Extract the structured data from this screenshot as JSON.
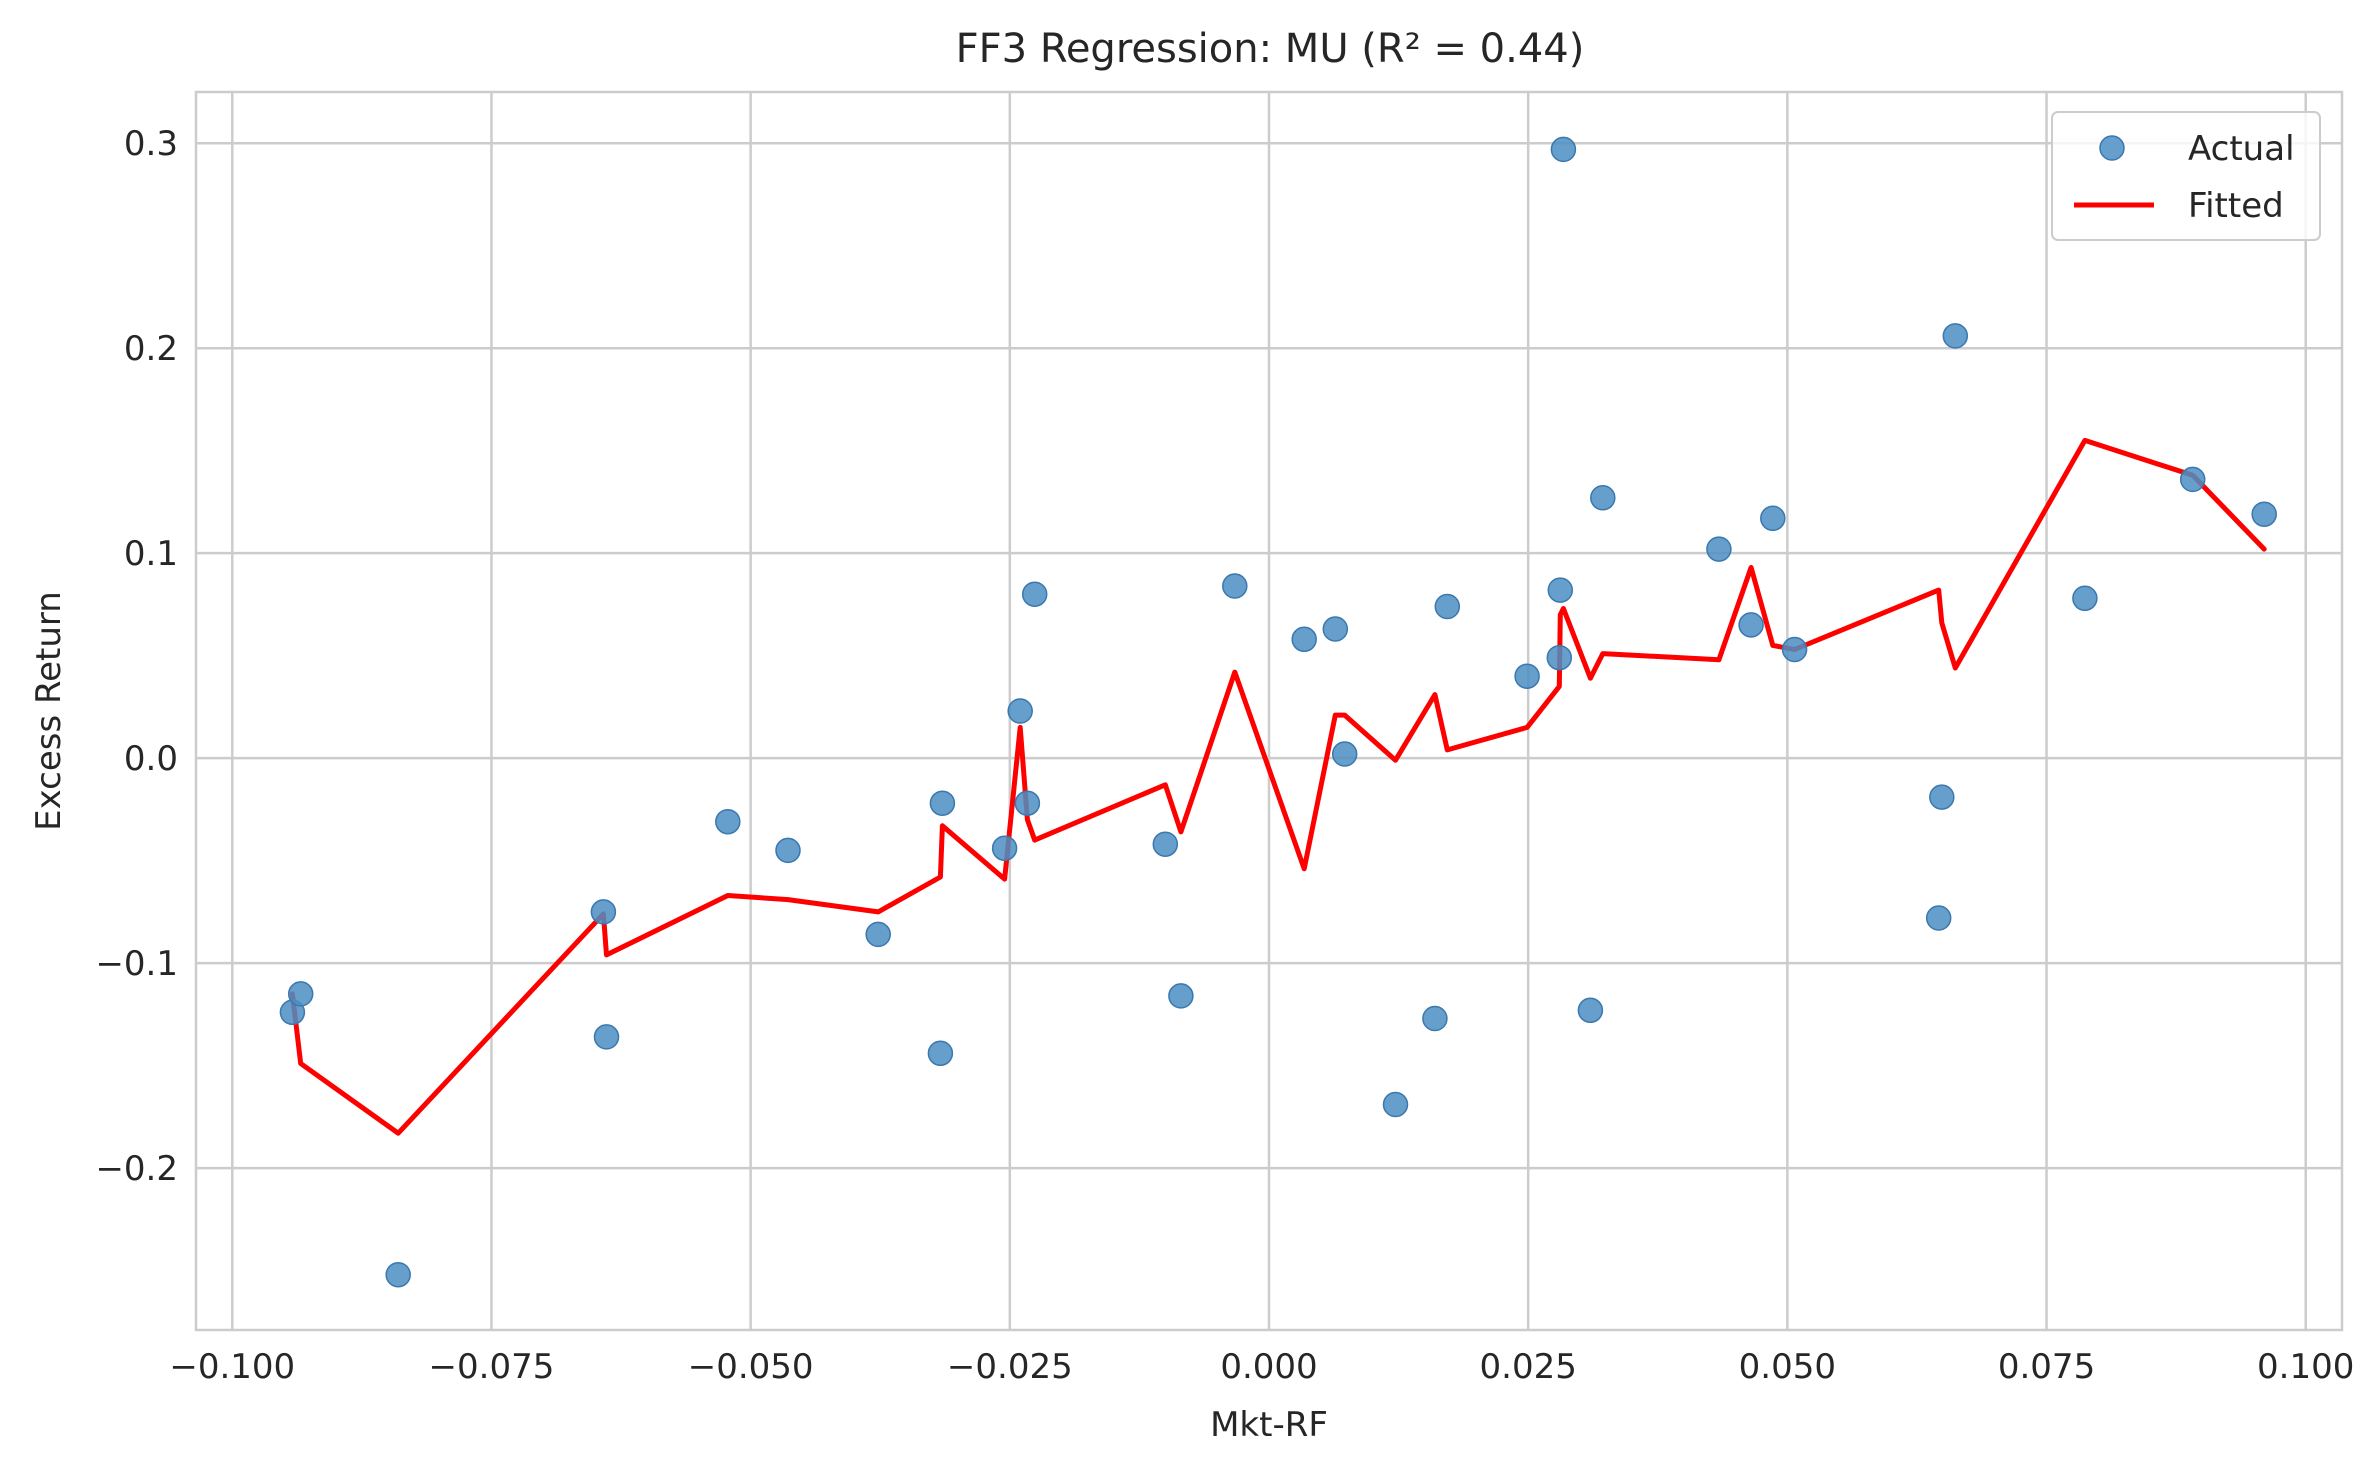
{
  "chart_data": {
    "type": "scatter",
    "title": "FF3 Regression: MU (R² = 0.44)",
    "xlabel": "Mkt-RF",
    "ylabel": "Excess Return",
    "xlim": [
      -0.1035,
      0.1035
    ],
    "ylim": [
      -0.279,
      0.325
    ],
    "xticks": [
      -0.1,
      -0.075,
      -0.05,
      -0.025,
      0.0,
      0.025,
      0.05,
      0.075,
      0.1
    ],
    "xtick_labels": [
      "−0.100",
      "−0.075",
      "−0.050",
      "−0.025",
      "0.000",
      "0.025",
      "0.050",
      "0.075",
      "0.100"
    ],
    "yticks": [
      -0.2,
      -0.1,
      0.0,
      0.1,
      0.2,
      0.3
    ],
    "ytick_labels": [
      "−0.2",
      "−0.1",
      "0.0",
      "0.1",
      "0.2",
      "0.3"
    ],
    "grid": true,
    "legend_position": "top-right",
    "series": [
      {
        "name": "Actual",
        "kind": "scatter",
        "color": "#4c8ec3",
        "points": [
          [
            -0.0942,
            -0.124
          ],
          [
            -0.0934,
            -0.115
          ],
          [
            -0.084,
            -0.252
          ],
          [
            -0.0642,
            -0.075
          ],
          [
            -0.0639,
            -0.136
          ],
          [
            -0.0522,
            -0.031
          ],
          [
            -0.0464,
            -0.045
          ],
          [
            -0.0377,
            -0.086
          ],
          [
            -0.0317,
            -0.144
          ],
          [
            -0.0315,
            -0.022
          ],
          [
            -0.0255,
            -0.044
          ],
          [
            -0.024,
            0.023
          ],
          [
            -0.0233,
            -0.022
          ],
          [
            -0.0226,
            0.08
          ],
          [
            -0.01,
            -0.042
          ],
          [
            -0.0085,
            -0.116
          ],
          [
            -0.0033,
            0.084
          ],
          [
            0.0034,
            0.058
          ],
          [
            0.0064,
            0.063
          ],
          [
            0.0073,
            0.002
          ],
          [
            0.0122,
            -0.169
          ],
          [
            0.016,
            -0.127
          ],
          [
            0.0172,
            0.074
          ],
          [
            0.0249,
            0.04
          ],
          [
            0.028,
            0.049
          ],
          [
            0.0281,
            0.082
          ],
          [
            0.0284,
            0.297
          ],
          [
            0.031,
            -0.123
          ],
          [
            0.0322,
            0.127
          ],
          [
            0.0434,
            0.102
          ],
          [
            0.0465,
            0.065
          ],
          [
            0.0486,
            0.117
          ],
          [
            0.0507,
            0.053
          ],
          [
            0.0646,
            -0.078
          ],
          [
            0.0649,
            -0.019
          ],
          [
            0.0662,
            0.206
          ],
          [
            0.0787,
            0.078
          ],
          [
            0.0891,
            0.136
          ],
          [
            0.096,
            0.119
          ]
        ]
      },
      {
        "name": "Fitted",
        "kind": "line",
        "color": "#ff0000",
        "points": [
          [
            -0.0942,
            -0.115
          ],
          [
            -0.0934,
            -0.149
          ],
          [
            -0.084,
            -0.183
          ],
          [
            -0.0642,
            -0.076
          ],
          [
            -0.0639,
            -0.096
          ],
          [
            -0.0522,
            -0.067
          ],
          [
            -0.0464,
            -0.069
          ],
          [
            -0.0377,
            -0.075
          ],
          [
            -0.0317,
            -0.058
          ],
          [
            -0.0315,
            -0.033
          ],
          [
            -0.0255,
            -0.059
          ],
          [
            -0.024,
            0.015
          ],
          [
            -0.0233,
            -0.03
          ],
          [
            -0.0226,
            -0.04
          ],
          [
            -0.01,
            -0.013
          ],
          [
            -0.0085,
            -0.036
          ],
          [
            -0.0033,
            0.042
          ],
          [
            0.0034,
            -0.054
          ],
          [
            0.0064,
            0.021
          ],
          [
            0.0073,
            0.021
          ],
          [
            0.0122,
            -0.001
          ],
          [
            0.016,
            0.031
          ],
          [
            0.0172,
            0.004
          ],
          [
            0.0249,
            0.015
          ],
          [
            0.028,
            0.035
          ],
          [
            0.0281,
            0.07
          ],
          [
            0.0284,
            0.073
          ],
          [
            0.031,
            0.039
          ],
          [
            0.0322,
            0.051
          ],
          [
            0.0434,
            0.048
          ],
          [
            0.0465,
            0.093
          ],
          [
            0.0486,
            0.055
          ],
          [
            0.0507,
            0.053
          ],
          [
            0.0646,
            0.082
          ],
          [
            0.0649,
            0.066
          ],
          [
            0.0662,
            0.044
          ],
          [
            0.0787,
            0.155
          ],
          [
            0.0891,
            0.138
          ],
          [
            0.096,
            0.102
          ]
        ]
      }
    ]
  }
}
